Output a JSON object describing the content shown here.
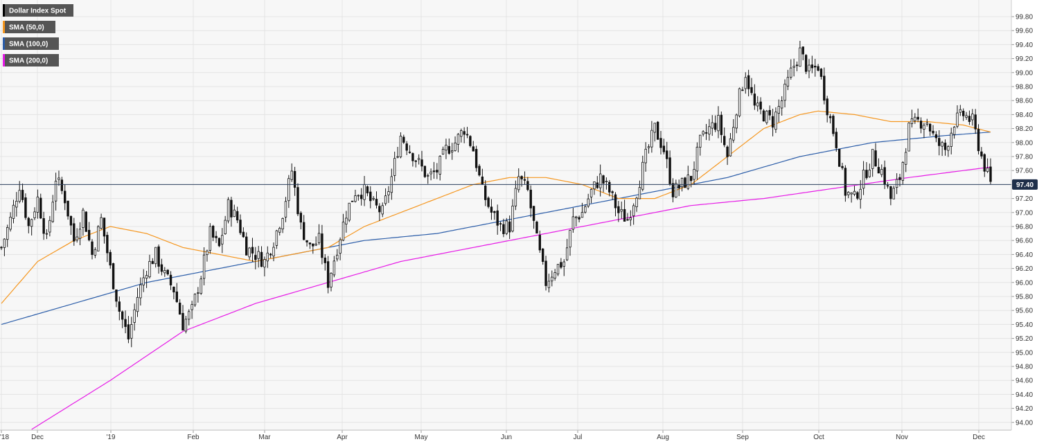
{
  "chart_data": {
    "type": "candlestick",
    "instrument": "Dollar Index Spot",
    "legend": [
      {
        "label": "Dollar Index Spot",
        "color": "#000000"
      },
      {
        "label": "SMA (50,0)",
        "color": "#f5961e"
      },
      {
        "label": "SMA (100,0)",
        "color": "#2a5ca8"
      },
      {
        "label": "SMA (200,0)",
        "color": "#e619e6"
      }
    ],
    "legend_position": "top-left",
    "y_axis": {
      "position": "right",
      "ylim": [
        93.9,
        100.0
      ],
      "ticks": [
        "99.80",
        "99.60",
        "99.40",
        "99.20",
        "99.00",
        "98.80",
        "98.60",
        "98.40",
        "98.20",
        "98.00",
        "97.80",
        "97.60",
        "97.40",
        "97.20",
        "97.00",
        "96.80",
        "96.60",
        "96.40",
        "96.20",
        "96.00",
        "95.80",
        "95.60",
        "95.40",
        "95.20",
        "95.00",
        "94.80",
        "94.60",
        "94.40",
        "94.20",
        "94.00"
      ]
    },
    "x_axis": {
      "labels": [
        "'18",
        "Dec",
        "'19",
        "Feb",
        "Mar",
        "Apr",
        "May",
        "Jun",
        "Jul",
        "Aug",
        "Sep",
        "Oct",
        "Nov",
        "Dec"
      ]
    },
    "grid": true,
    "current_price": {
      "label": "97.40",
      "value": 97.4
    },
    "close_path": [
      [
        0,
        96.5
      ],
      [
        3,
        96.9
      ],
      [
        6,
        97.4
      ],
      [
        9,
        96.8
      ],
      [
        12,
        97.2
      ],
      [
        15,
        96.6
      ],
      [
        18,
        97.5
      ],
      [
        21,
        97.2
      ],
      [
        24,
        96.6
      ],
      [
        27,
        97.0
      ],
      [
        30,
        96.4
      ],
      [
        33,
        96.9
      ],
      [
        36,
        96.2
      ],
      [
        39,
        95.6
      ],
      [
        42,
        95.2
      ],
      [
        45,
        95.8
      ],
      [
        48,
        96.2
      ],
      [
        51,
        96.4
      ],
      [
        54,
        96.1
      ],
      [
        57,
        95.9
      ],
      [
        60,
        95.4
      ],
      [
        63,
        95.6
      ],
      [
        66,
        96.1
      ],
      [
        69,
        96.7
      ],
      [
        72,
        96.5
      ],
      [
        75,
        97.1
      ],
      [
        78,
        96.9
      ],
      [
        81,
        96.5
      ],
      [
        84,
        96.4
      ],
      [
        87,
        96.3
      ],
      [
        90,
        96.6
      ],
      [
        93,
        97.0
      ],
      [
        96,
        97.6
      ],
      [
        99,
        96.8
      ],
      [
        102,
        96.5
      ],
      [
        105,
        96.6
      ],
      [
        108,
        96.0
      ],
      [
        111,
        96.5
      ],
      [
        114,
        97.0
      ],
      [
        117,
        97.3
      ],
      [
        120,
        97.3
      ],
      [
        123,
        97.1
      ],
      [
        126,
        97.0
      ],
      [
        129,
        97.5
      ],
      [
        132,
        98.1
      ],
      [
        135,
        97.9
      ],
      [
        138,
        97.7
      ],
      [
        141,
        97.5
      ],
      [
        144,
        97.6
      ],
      [
        147,
        97.9
      ],
      [
        150,
        98.0
      ],
      [
        153,
        98.2
      ],
      [
        156,
        97.9
      ],
      [
        159,
        97.3
      ],
      [
        162,
        97.0
      ],
      [
        165,
        96.8
      ],
      [
        168,
        96.8
      ],
      [
        171,
        97.5
      ],
      [
        174,
        97.3
      ],
      [
        177,
        96.6
      ],
      [
        180,
        96.0
      ],
      [
        183,
        96.2
      ],
      [
        186,
        96.3
      ],
      [
        189,
        96.9
      ],
      [
        192,
        97.0
      ],
      [
        195,
        97.3
      ],
      [
        198,
        97.5
      ],
      [
        201,
        97.3
      ],
      [
        204,
        97.0
      ],
      [
        207,
        96.9
      ],
      [
        210,
        97.3
      ],
      [
        213,
        97.8
      ],
      [
        216,
        98.2
      ],
      [
        219,
        97.9
      ],
      [
        222,
        97.3
      ],
      [
        225,
        97.4
      ],
      [
        228,
        97.5
      ],
      [
        231,
        98.0
      ],
      [
        234,
        98.2
      ],
      [
        237,
        98.3
      ],
      [
        240,
        97.8
      ],
      [
        243,
        98.5
      ],
      [
        246,
        99.0
      ],
      [
        249,
        98.5
      ],
      [
        252,
        98.4
      ],
      [
        255,
        98.3
      ],
      [
        258,
        98.6
      ],
      [
        261,
        99.0
      ],
      [
        264,
        99.3
      ],
      [
        267,
        99.0
      ],
      [
        270,
        99.1
      ],
      [
        273,
        98.5
      ],
      [
        276,
        98.0
      ],
      [
        279,
        97.3
      ],
      [
        282,
        97.2
      ],
      [
        285,
        97.5
      ],
      [
        288,
        97.8
      ],
      [
        291,
        97.6
      ],
      [
        294,
        97.2
      ],
      [
        297,
        97.5
      ],
      [
        300,
        98.2
      ],
      [
        303,
        98.3
      ],
      [
        306,
        98.3
      ],
      [
        309,
        98.0
      ],
      [
        312,
        97.9
      ],
      [
        315,
        98.3
      ],
      [
        318,
        98.4
      ],
      [
        321,
        98.3
      ],
      [
        324,
        97.8
      ],
      [
        327,
        97.4
      ]
    ],
    "sma50_path": [
      [
        0,
        95.7
      ],
      [
        12,
        96.3
      ],
      [
        24,
        96.6
      ],
      [
        36,
        96.8
      ],
      [
        48,
        96.7
      ],
      [
        60,
        96.5
      ],
      [
        72,
        96.4
      ],
      [
        84,
        96.3
      ],
      [
        96,
        96.4
      ],
      [
        108,
        96.5
      ],
      [
        120,
        96.8
      ],
      [
        132,
        97.0
      ],
      [
        144,
        97.2
      ],
      [
        156,
        97.4
      ],
      [
        168,
        97.5
      ],
      [
        180,
        97.5
      ],
      [
        192,
        97.4
      ],
      [
        204,
        97.2
      ],
      [
        216,
        97.2
      ],
      [
        228,
        97.4
      ],
      [
        240,
        97.8
      ],
      [
        252,
        98.2
      ],
      [
        264,
        98.4
      ],
      [
        270,
        98.45
      ],
      [
        282,
        98.4
      ],
      [
        294,
        98.3
      ],
      [
        306,
        98.3
      ],
      [
        318,
        98.25
      ],
      [
        327,
        98.15
      ]
    ],
    "sma100_path": [
      [
        0,
        95.4
      ],
      [
        24,
        95.7
      ],
      [
        48,
        96.0
      ],
      [
        72,
        96.2
      ],
      [
        96,
        96.4
      ],
      [
        120,
        96.6
      ],
      [
        144,
        96.7
      ],
      [
        168,
        96.9
      ],
      [
        192,
        97.1
      ],
      [
        216,
        97.3
      ],
      [
        240,
        97.5
      ],
      [
        264,
        97.8
      ],
      [
        288,
        98.0
      ],
      [
        312,
        98.1
      ],
      [
        327,
        98.15
      ]
    ],
    "sma200_path": [
      [
        10,
        93.9
      ],
      [
        36,
        94.6
      ],
      [
        60,
        95.3
      ],
      [
        84,
        95.7
      ],
      [
        108,
        96.0
      ],
      [
        132,
        96.3
      ],
      [
        156,
        96.5
      ],
      [
        180,
        96.7
      ],
      [
        204,
        96.9
      ],
      [
        228,
        97.1
      ],
      [
        252,
        97.2
      ],
      [
        276,
        97.35
      ],
      [
        300,
        97.5
      ],
      [
        318,
        97.6
      ],
      [
        327,
        97.65
      ]
    ],
    "bar_count": 328
  }
}
